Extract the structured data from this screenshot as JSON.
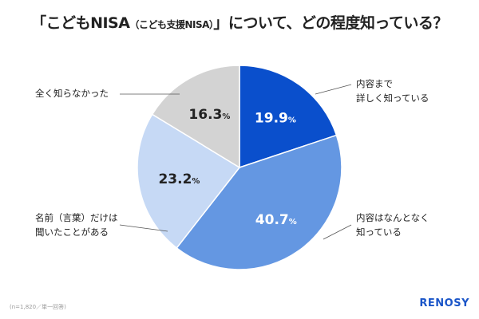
{
  "title": {
    "main_a": "「こどもNISA",
    "sub": "（こども支援NISA）",
    "main_b": "」について、どの程度知っている？"
  },
  "chart_data": {
    "type": "pie",
    "start": "12 o'clock, clockwise",
    "slices": [
      {
        "label": "内容まで詳しく知っている",
        "label_lines": [
          "内容まで",
          "詳しく知っている"
        ],
        "value": 19.9,
        "color": "#0a4fcc",
        "text_color": "#ffffff"
      },
      {
        "label": "内容はなんとなく知っている",
        "label_lines": [
          "内容はなんとなく",
          "知っている"
        ],
        "value": 40.7,
        "color": "#6497e2",
        "text_color": "#ffffff"
      },
      {
        "label": "名前（言葉）だけは聞いたことがある",
        "label_lines": [
          "名前（言葉）だけは",
          "聞いたことがある"
        ],
        "value": 23.2,
        "color": "#c6d9f5",
        "text_color": "#222222"
      },
      {
        "label": "全く知らなかった",
        "label_lines": [
          "全く知らなかった"
        ],
        "value": 16.3,
        "color": "#d3d3d3",
        "text_color": "#222222"
      }
    ],
    "unit": "%"
  },
  "footer": {
    "note": "(n=1,820／単一回答)",
    "logo": "RENOSY"
  }
}
